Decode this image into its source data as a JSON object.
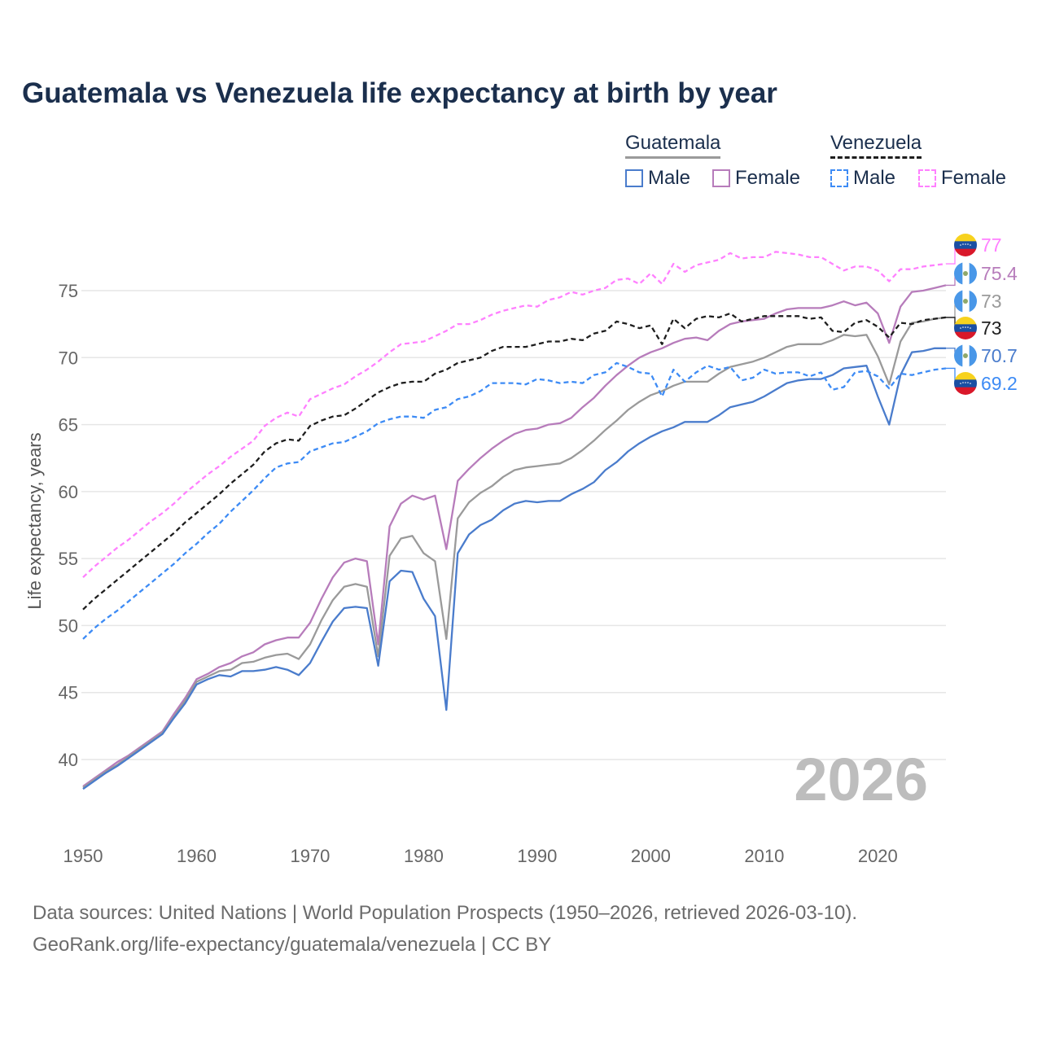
{
  "chart_data": {
    "type": "line",
    "title": "Guatemala vs Venezuela life expectancy at birth by year",
    "ylabel": "Life expectancy, years",
    "xlabel": "",
    "xlim": [
      1950,
      2026
    ],
    "ylim": [
      35,
      79
    ],
    "x_ticks": [
      1950,
      1960,
      1970,
      1980,
      1990,
      2000,
      2010,
      2020
    ],
    "y_ticks": [
      40,
      45,
      50,
      55,
      60,
      65,
      70,
      75
    ],
    "grid": "horizontal",
    "watermark_year": "2026",
    "legend": {
      "placement": "top-right",
      "groups": [
        {
          "name": "Guatemala",
          "items": [
            "Male",
            "Female"
          ]
        },
        {
          "name": "Venezuela",
          "items": [
            "Male",
            "Female"
          ]
        }
      ]
    },
    "x_start": 1950,
    "series": [
      {
        "name": "Venezuela Female",
        "country": "Venezuela",
        "color": "#ff80ff",
        "dashed": true,
        "end_label": "77",
        "values": [
          53.6,
          54.4,
          55.1,
          55.8,
          56.4,
          57.1,
          57.8,
          58.4,
          59.1,
          59.9,
          60.6,
          61.3,
          61.9,
          62.6,
          63.2,
          63.8,
          64.9,
          65.5,
          65.9,
          65.6,
          66.9,
          67.3,
          67.7,
          68.0,
          68.6,
          69.1,
          69.7,
          70.4,
          71.0,
          71.1,
          71.2,
          71.6,
          72.0,
          72.5,
          72.5,
          72.8,
          73.2,
          73.5,
          73.7,
          73.9,
          73.8,
          74.3,
          74.5,
          74.9,
          74.7,
          75.0,
          75.2,
          75.8,
          75.9,
          75.5,
          76.3,
          75.5,
          77.0,
          76.4,
          76.9,
          77.1,
          77.3,
          77.8,
          77.4,
          77.5,
          77.5,
          77.9,
          77.8,
          77.7,
          77.5,
          77.5,
          77.0,
          76.5,
          76.8,
          76.8,
          76.5,
          75.7,
          76.6,
          76.6,
          76.8,
          76.9,
          77.0
        ]
      },
      {
        "name": "Guatemala Female",
        "country": "Guatemala",
        "color": "#b77cbb",
        "dashed": false,
        "end_label": "75.4",
        "values": [
          38.0,
          38.6,
          39.2,
          39.8,
          40.3,
          40.9,
          41.5,
          42.1,
          43.4,
          44.6,
          46.0,
          46.4,
          46.9,
          47.2,
          47.7,
          48.0,
          48.6,
          48.9,
          49.1,
          49.1,
          50.2,
          52.0,
          53.6,
          54.7,
          55.0,
          54.8,
          48.6,
          57.4,
          59.1,
          59.7,
          59.4,
          59.7,
          55.7,
          60.8,
          61.7,
          62.5,
          63.2,
          63.8,
          64.3,
          64.6,
          64.7,
          65.0,
          65.1,
          65.5,
          66.3,
          67.0,
          67.9,
          68.7,
          69.4,
          70.0,
          70.4,
          70.7,
          71.1,
          71.4,
          71.5,
          71.3,
          72.0,
          72.5,
          72.7,
          72.8,
          72.9,
          73.3,
          73.6,
          73.7,
          73.7,
          73.7,
          73.9,
          74.2,
          73.9,
          74.1,
          73.3,
          71.1,
          73.8,
          74.9,
          75.0,
          75.2,
          75.4
        ]
      },
      {
        "name": "Guatemala",
        "country": "Guatemala",
        "color": "#9a9a9a",
        "dashed": false,
        "end_label": "73",
        "values": [
          37.9,
          38.5,
          39.1,
          39.6,
          40.2,
          40.8,
          41.4,
          42.0,
          43.2,
          44.4,
          45.8,
          46.2,
          46.6,
          46.7,
          47.2,
          47.3,
          47.6,
          47.8,
          47.9,
          47.5,
          48.6,
          50.4,
          51.9,
          52.9,
          53.1,
          52.9,
          47.7,
          55.2,
          56.5,
          56.7,
          55.4,
          54.8,
          49.0,
          58.0,
          59.2,
          59.9,
          60.4,
          61.1,
          61.6,
          61.8,
          61.9,
          62.0,
          62.1,
          62.5,
          63.1,
          63.8,
          64.6,
          65.3,
          66.1,
          66.7,
          67.2,
          67.5,
          67.9,
          68.2,
          68.2,
          68.2,
          68.8,
          69.3,
          69.5,
          69.7,
          70.0,
          70.4,
          70.8,
          71.0,
          71.0,
          71.0,
          71.3,
          71.7,
          71.6,
          71.7,
          70.1,
          68.0,
          71.2,
          72.6,
          72.7,
          72.9,
          73.0
        ]
      },
      {
        "name": "Venezuela",
        "country": "Venezuela",
        "color": "#1e1e1e",
        "dashed": true,
        "end_label": "73",
        "values": [
          51.2,
          52.0,
          52.7,
          53.4,
          54.1,
          54.8,
          55.5,
          56.2,
          56.9,
          57.7,
          58.4,
          59.1,
          59.8,
          60.6,
          61.3,
          62.0,
          63.0,
          63.6,
          63.9,
          63.8,
          64.9,
          65.3,
          65.6,
          65.7,
          66.2,
          66.8,
          67.4,
          67.8,
          68.1,
          68.2,
          68.2,
          68.8,
          69.1,
          69.6,
          69.8,
          70.0,
          70.5,
          70.8,
          70.8,
          70.8,
          71.0,
          71.2,
          71.2,
          71.4,
          71.3,
          71.8,
          72.0,
          72.7,
          72.5,
          72.2,
          72.4,
          71.0,
          72.9,
          72.2,
          72.9,
          73.1,
          73.0,
          73.3,
          72.7,
          72.9,
          73.1,
          73.1,
          73.1,
          73.1,
          72.9,
          73.0,
          72.0,
          71.9,
          72.6,
          72.8,
          72.3,
          71.5,
          72.6,
          72.5,
          72.8,
          72.9,
          73.0
        ]
      },
      {
        "name": "Guatemala Male",
        "country": "Guatemala",
        "color": "#4a7ccc",
        "dashed": false,
        "end_label": "70.7",
        "values": [
          37.8,
          38.4,
          39.0,
          39.5,
          40.1,
          40.7,
          41.3,
          41.9,
          43.1,
          44.2,
          45.6,
          46.0,
          46.3,
          46.2,
          46.6,
          46.6,
          46.7,
          46.9,
          46.7,
          46.3,
          47.2,
          48.8,
          50.3,
          51.3,
          51.4,
          51.3,
          47.0,
          53.3,
          54.1,
          54.0,
          52.0,
          50.7,
          43.7,
          55.4,
          56.8,
          57.5,
          57.9,
          58.6,
          59.1,
          59.3,
          59.2,
          59.3,
          59.3,
          59.8,
          60.2,
          60.7,
          61.6,
          62.2,
          63.0,
          63.6,
          64.1,
          64.5,
          64.8,
          65.2,
          65.2,
          65.2,
          65.7,
          66.3,
          66.5,
          66.7,
          67.1,
          67.6,
          68.1,
          68.3,
          68.4,
          68.4,
          68.7,
          69.2,
          69.3,
          69.4,
          67.1,
          65.0,
          68.7,
          70.4,
          70.5,
          70.7,
          70.7
        ]
      },
      {
        "name": "Venezuela Male",
        "country": "Venezuela",
        "color": "#3d8bf5",
        "dashed": true,
        "end_label": "69.2",
        "values": [
          49.0,
          49.8,
          50.5,
          51.1,
          51.8,
          52.5,
          53.2,
          53.9,
          54.6,
          55.4,
          56.1,
          56.9,
          57.6,
          58.5,
          59.3,
          60.1,
          61.0,
          61.8,
          62.1,
          62.2,
          63.0,
          63.3,
          63.6,
          63.7,
          64.1,
          64.5,
          65.1,
          65.4,
          65.6,
          65.6,
          65.5,
          66.1,
          66.3,
          66.9,
          67.1,
          67.5,
          68.1,
          68.1,
          68.1,
          68.0,
          68.4,
          68.3,
          68.1,
          68.2,
          68.1,
          68.7,
          68.9,
          69.6,
          69.3,
          68.9,
          68.8,
          67.1,
          69.1,
          68.2,
          68.9,
          69.4,
          69.1,
          69.3,
          68.3,
          68.5,
          69.1,
          68.8,
          68.9,
          68.9,
          68.6,
          68.9,
          67.6,
          67.8,
          68.9,
          69.0,
          68.6,
          67.7,
          68.8,
          68.7,
          68.9,
          69.1,
          69.2
        ]
      }
    ]
  },
  "legend": {
    "guatemala": "Guatemala",
    "venezuela": "Venezuela",
    "male": "Male",
    "female": "Female"
  },
  "footer": {
    "line1": "Data sources: United Nations | World Population Prospects (1950–2026, retrieved 2026-03-10).",
    "line2": "GeoRank.org/life-expectancy/guatemala/venezuela | CC BY"
  }
}
